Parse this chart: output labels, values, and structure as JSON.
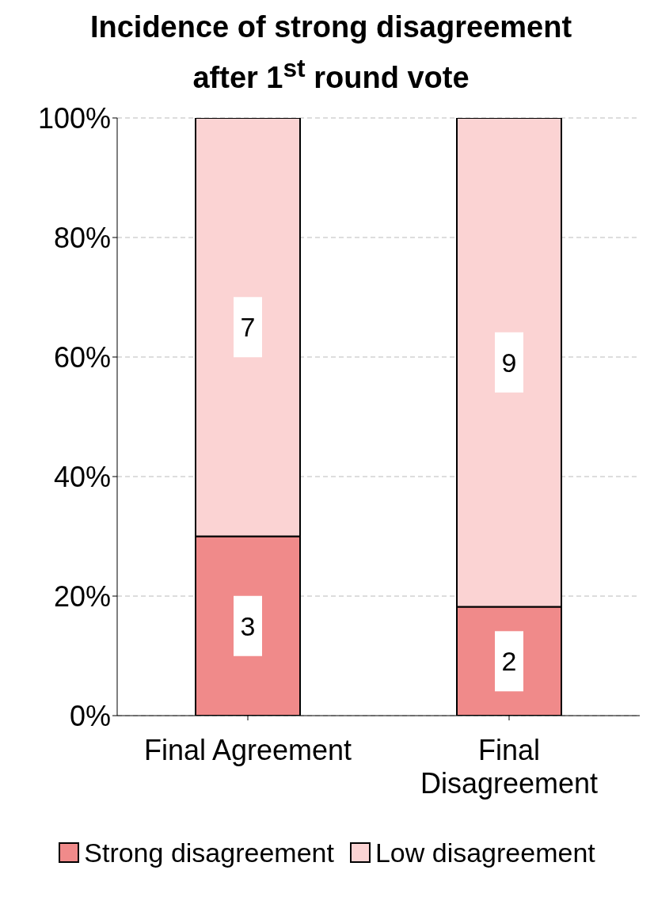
{
  "chart_data": {
    "type": "bar",
    "title": "Incidence of strong disagreement after 1$^{st}$ round vote",
    "categories": [
      "Final Agreement",
      "Final Disagreement"
    ],
    "series": [
      {
        "name": "Strong disagreement",
        "color": "#f08a8a",
        "values": [
          30,
          18.2
        ]
      },
      {
        "name": "Low disagreement",
        "color": "#fbd3d3",
        "values": [
          70,
          81.8
        ]
      }
    ],
    "annotations": [
      "3",
      "7",
      "2",
      "9"
    ],
    "stacked": true,
    "ylim": [
      0,
      100
    ],
    "yticks": [
      {
        "value": 0,
        "label": "0%"
      },
      {
        "value": 20,
        "label": "20%"
      },
      {
        "value": 40,
        "label": "40%"
      },
      {
        "value": 60,
        "label": "60%"
      },
      {
        "value": 80,
        "label": "80%"
      },
      {
        "value": 100,
        "label": "100%"
      }
    ],
    "grid": "y",
    "legend": "bottom"
  }
}
